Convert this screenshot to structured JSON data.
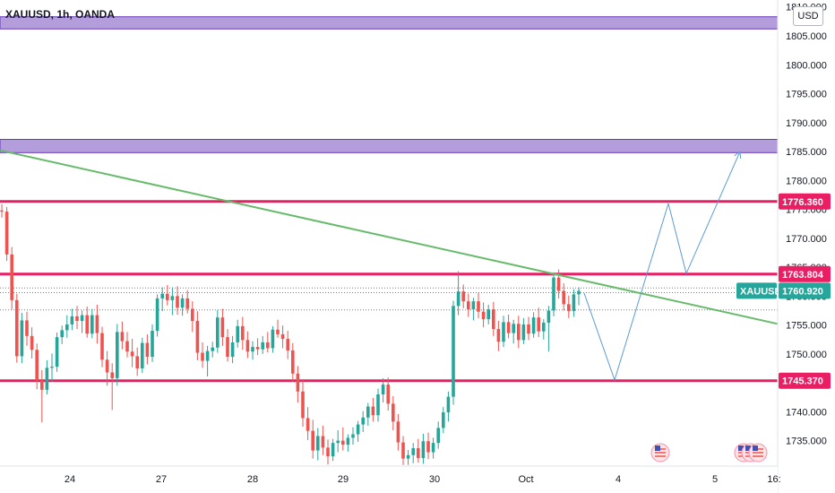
{
  "symbol": "XAUUSD, 1h, OANDA",
  "currency_label": "USD",
  "colors": {
    "up": "#26a69a",
    "down": "#ef5350",
    "level": "#e91e63",
    "zone_fill": "#b39ddb",
    "zone_border": "#673ab7",
    "trendline": "#66bb6a",
    "projection": "#5b9bd5",
    "current_price": "#26a69a"
  },
  "chart_data": {
    "type": "candlestick",
    "title": "XAUUSD, 1h, OANDA",
    "y_axis": {
      "ticks": [
        1735,
        1740,
        1745,
        1750,
        1755,
        1760,
        1765,
        1770,
        1775,
        1780,
        1785,
        1790,
        1795,
        1800,
        1805,
        1810
      ],
      "tick_labels": [
        "1735.000",
        "1740.000",
        "1745.000",
        "1750.000",
        "1755.000",
        "1760.000",
        "1765.000",
        "1770.000",
        "1775.000",
        "1780.000",
        "1785.000",
        "1790.000",
        "1795.000",
        "1800.000",
        "1805.000",
        "1810.000"
      ],
      "range": [
        1730.6,
        1811.2
      ]
    },
    "x_axis": {
      "labels": [
        "24",
        "27",
        "28",
        "29",
        "30",
        "Oct",
        "4",
        "5",
        "16:"
      ]
    },
    "horizontal_levels": [
      {
        "label": "1776.360",
        "value": 1776.36
      },
      {
        "label": "1763.804",
        "value": 1763.804
      },
      {
        "label": "1745.370",
        "value": 1745.37
      }
    ],
    "zones": [
      {
        "from": 1806.2,
        "to": 1808.3
      },
      {
        "from": 1784.8,
        "to": 1787.1
      }
    ],
    "current_price": {
      "symbol": "XAUUSD",
      "label": "1760.920",
      "value": 1760.92
    },
    "dotted_lines": [
      1761.4,
      1760.6,
      1757.6
    ],
    "trendline": {
      "points": [
        [
          0,
          1785.2
        ],
        [
          1,
          1755.2
        ]
      ]
    },
    "projection_path": [
      1760.5,
      1745.5,
      1776.0,
      1763.9,
      1785.0
    ],
    "candles": [
      [
        1774.8,
        1775.9,
        1773.6,
        1774.6
      ],
      [
        1774.6,
        1775.4,
        1766.1,
        1767.2
      ],
      [
        1767.2,
        1768.5,
        1757.7,
        1759.3
      ],
      [
        1759.3,
        1760.4,
        1748.5,
        1749.6
      ],
      [
        1749.6,
        1757.1,
        1748.4,
        1755.8
      ],
      [
        1755.8,
        1757.3,
        1751.4,
        1753.1
      ],
      [
        1753.1,
        1754.6,
        1749.2,
        1750.7
      ],
      [
        1750.7,
        1751.8,
        1743.9,
        1745.4
      ],
      [
        1745.4,
        1747.2,
        1738.2,
        1743.8
      ],
      [
        1743.8,
        1748.9,
        1743.0,
        1747.6
      ],
      [
        1747.6,
        1750.1,
        1745.2,
        1747.8
      ],
      [
        1747.8,
        1753.7,
        1746.9,
        1752.9
      ],
      [
        1752.9,
        1754.9,
        1751.7,
        1754.1
      ],
      [
        1754.1,
        1756.7,
        1752.8,
        1755.1
      ],
      [
        1755.1,
        1757.8,
        1754.1,
        1756.5
      ],
      [
        1756.5,
        1758.3,
        1754.3,
        1755.7
      ],
      [
        1755.7,
        1757.5,
        1753.6,
        1756.7
      ],
      [
        1756.7,
        1758.2,
        1752.8,
        1753.5
      ],
      [
        1753.5,
        1757.8,
        1752.7,
        1756.7
      ],
      [
        1756.7,
        1758.5,
        1751.8,
        1753.6
      ],
      [
        1753.6,
        1754.7,
        1747.7,
        1749.0
      ],
      [
        1749.0,
        1750.5,
        1744.5,
        1746.8
      ],
      [
        1746.8,
        1748.4,
        1740.3,
        1745.8
      ],
      [
        1745.8,
        1755.2,
        1744.5,
        1753.8
      ],
      [
        1753.8,
        1755.6,
        1750.8,
        1752.2
      ],
      [
        1752.2,
        1753.8,
        1749.4,
        1750.4
      ],
      [
        1750.4,
        1752.6,
        1747.7,
        1749.6
      ],
      [
        1749.6,
        1751.1,
        1746.2,
        1747.5
      ],
      [
        1747.5,
        1752.8,
        1746.7,
        1751.9
      ],
      [
        1751.9,
        1753.4,
        1748.2,
        1749.5
      ],
      [
        1749.5,
        1755.1,
        1748.6,
        1754.0
      ],
      [
        1754.0,
        1760.3,
        1753.0,
        1759.6
      ],
      [
        1759.6,
        1761.5,
        1757.4,
        1760.4
      ],
      [
        1760.4,
        1761.9,
        1758.4,
        1759.3
      ],
      [
        1759.3,
        1761.5,
        1756.7,
        1760.0
      ],
      [
        1760.0,
        1761.7,
        1756.8,
        1758.0
      ],
      [
        1758.0,
        1760.3,
        1756.6,
        1759.6
      ],
      [
        1759.6,
        1761.0,
        1757.0,
        1757.8
      ],
      [
        1757.8,
        1759.1,
        1753.8,
        1755.7
      ],
      [
        1755.7,
        1757.4,
        1748.9,
        1750.2
      ],
      [
        1750.2,
        1752.0,
        1747.6,
        1748.8
      ],
      [
        1748.8,
        1751.4,
        1746.1,
        1750.5
      ],
      [
        1750.5,
        1752.1,
        1749.4,
        1751.1
      ],
      [
        1751.1,
        1757.6,
        1750.2,
        1756.3
      ],
      [
        1756.3,
        1757.8,
        1751.4,
        1752.9
      ],
      [
        1752.9,
        1754.3,
        1748.7,
        1749.5
      ],
      [
        1749.5,
        1753.1,
        1748.4,
        1752.0
      ],
      [
        1752.0,
        1755.9,
        1751.1,
        1754.8
      ],
      [
        1754.8,
        1756.4,
        1750.7,
        1752.4
      ],
      [
        1752.4,
        1753.9,
        1749.3,
        1750.4
      ],
      [
        1750.4,
        1752.2,
        1749.0,
        1751.2
      ],
      [
        1751.2,
        1752.7,
        1749.8,
        1750.8
      ],
      [
        1750.8,
        1753.1,
        1750.0,
        1752.0
      ],
      [
        1752.0,
        1753.8,
        1750.3,
        1751.0
      ],
      [
        1751.0,
        1754.8,
        1750.2,
        1754.2
      ],
      [
        1754.2,
        1755.9,
        1752.8,
        1753.4
      ],
      [
        1753.4,
        1754.9,
        1751.0,
        1752.6
      ],
      [
        1752.6,
        1754.0,
        1749.1,
        1750.6
      ],
      [
        1750.6,
        1751.9,
        1745.2,
        1746.6
      ],
      [
        1746.6,
        1747.9,
        1741.6,
        1743.5
      ],
      [
        1743.5,
        1745.5,
        1737.4,
        1738.9
      ],
      [
        1738.9,
        1740.8,
        1735.1,
        1736.7
      ],
      [
        1736.7,
        1738.6,
        1731.9,
        1733.3
      ],
      [
        1733.3,
        1737.2,
        1731.6,
        1735.8
      ],
      [
        1735.8,
        1737.6,
        1732.5,
        1733.8
      ],
      [
        1733.8,
        1735.2,
        1730.9,
        1732.3
      ],
      [
        1732.3,
        1735.3,
        1731.5,
        1734.6
      ],
      [
        1734.6,
        1736.8,
        1733.0,
        1735.0
      ],
      [
        1735.0,
        1737.3,
        1733.3,
        1734.3
      ],
      [
        1734.3,
        1736.1,
        1733.1,
        1735.5
      ],
      [
        1735.5,
        1737.3,
        1734.3,
        1736.1
      ],
      [
        1736.1,
        1738.4,
        1734.8,
        1737.8
      ],
      [
        1737.8,
        1740.1,
        1736.5,
        1739.0
      ],
      [
        1739.0,
        1741.5,
        1737.6,
        1740.9
      ],
      [
        1740.9,
        1742.4,
        1738.3,
        1739.4
      ],
      [
        1739.4,
        1744.0,
        1738.3,
        1743.0
      ],
      [
        1743.0,
        1745.8,
        1741.6,
        1744.7
      ],
      [
        1744.7,
        1745.9,
        1740.2,
        1741.4
      ],
      [
        1741.4,
        1742.7,
        1736.8,
        1738.3
      ],
      [
        1738.3,
        1739.6,
        1733.3,
        1734.7
      ],
      [
        1734.7,
        1735.8,
        1730.8,
        1731.9
      ],
      [
        1731.9,
        1733.4,
        1730.8,
        1732.5
      ],
      [
        1732.5,
        1734.6,
        1731.1,
        1733.7
      ],
      [
        1733.7,
        1735.3,
        1731.2,
        1732.0
      ],
      [
        1732.0,
        1736.2,
        1731.0,
        1734.9
      ],
      [
        1734.9,
        1736.4,
        1731.8,
        1733.0
      ],
      [
        1733.0,
        1735.5,
        1731.9,
        1734.6
      ],
      [
        1734.6,
        1738.3,
        1733.6,
        1737.2
      ],
      [
        1737.2,
        1740.8,
        1736.3,
        1739.9
      ],
      [
        1739.9,
        1743.5,
        1738.3,
        1742.6
      ],
      [
        1742.6,
        1759.2,
        1741.2,
        1758.3
      ],
      [
        1758.3,
        1764.3,
        1756.7,
        1760.8
      ],
      [
        1760.8,
        1762.0,
        1757.9,
        1759.1
      ],
      [
        1759.1,
        1760.4,
        1756.4,
        1757.7
      ],
      [
        1757.7,
        1759.7,
        1755.8,
        1759.1
      ],
      [
        1759.1,
        1760.6,
        1756.2,
        1757.3
      ],
      [
        1757.3,
        1758.9,
        1754.6,
        1756.0
      ],
      [
        1756.0,
        1758.5,
        1755.1,
        1757.7
      ],
      [
        1757.7,
        1759.0,
        1753.1,
        1754.3
      ],
      [
        1754.3,
        1755.7,
        1750.5,
        1752.1
      ],
      [
        1752.1,
        1756.6,
        1751.2,
        1755.5
      ],
      [
        1755.5,
        1756.8,
        1752.7,
        1753.6
      ],
      [
        1753.6,
        1755.9,
        1751.8,
        1755.2
      ],
      [
        1755.2,
        1756.6,
        1751.0,
        1752.4
      ],
      [
        1752.4,
        1756.2,
        1751.7,
        1755.1
      ],
      [
        1755.1,
        1756.4,
        1752.4,
        1753.5
      ],
      [
        1753.5,
        1757.2,
        1752.8,
        1756.3
      ],
      [
        1756.3,
        1758.0,
        1752.9,
        1753.9
      ],
      [
        1753.9,
        1756.0,
        1752.5,
        1755.4
      ],
      [
        1755.4,
        1758.3,
        1750.4,
        1757.5
      ],
      [
        1757.5,
        1764.1,
        1756.5,
        1763.2
      ],
      [
        1763.2,
        1764.6,
        1759.6,
        1760.9
      ],
      [
        1760.9,
        1762.2,
        1757.5,
        1758.6
      ],
      [
        1758.6,
        1760.1,
        1756.2,
        1757.4
      ],
      [
        1757.4,
        1761.2,
        1756.4,
        1760.3
      ],
      [
        1760.3,
        1761.5,
        1758.4,
        1760.9
      ]
    ]
  }
}
